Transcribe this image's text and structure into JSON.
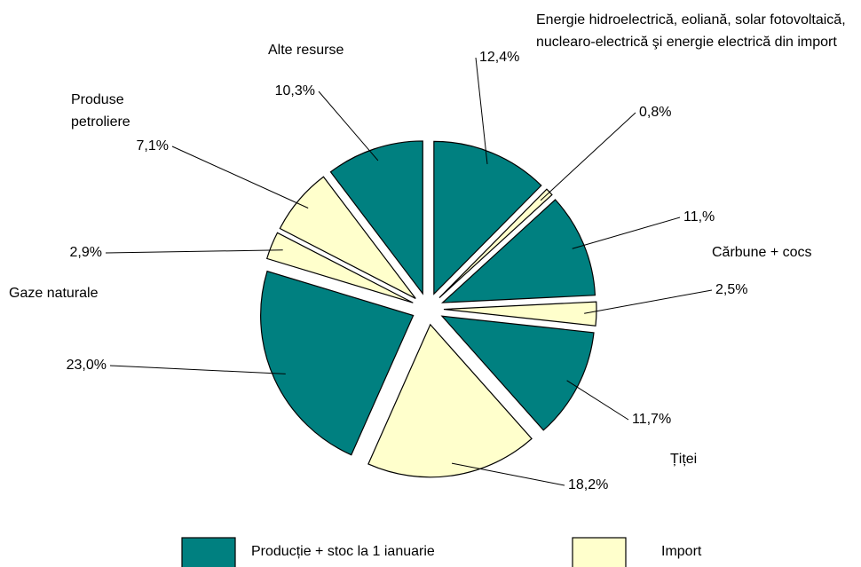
{
  "chart_data": {
    "type": "pie",
    "values": [
      12.4,
      0.8,
      11,
      2.5,
      11.7,
      18.2,
      23.0,
      2.9,
      7.1,
      10.3
    ],
    "value_labels": [
      "12,4%",
      "0,8%",
      "11,%",
      "2,5%",
      "11,7%",
      "18,2%",
      "23,0%",
      "2,9%",
      "7,1%",
      "10,3%"
    ],
    "colors": [
      "#008080",
      "#ffffcc",
      "#008080",
      "#ffffcc",
      "#008080",
      "#ffffcc",
      "#008080",
      "#ffffcc",
      "#ffffcc",
      "#008080"
    ],
    "annotations": [
      "Energie hidroelectrică, eoliană, solar fotovoltaică, nuclearo-electrică şi energie electrică din import",
      "Cărbune + cocs",
      "Țiței",
      "Gaze naturale",
      "Produse petroliere",
      "Alte resurse"
    ],
    "legend": [
      {
        "name": "Producție + stoc la 1 ianuarie",
        "color": "#008080"
      },
      {
        "name": "Import",
        "color": "#ffffcc"
      }
    ]
  }
}
